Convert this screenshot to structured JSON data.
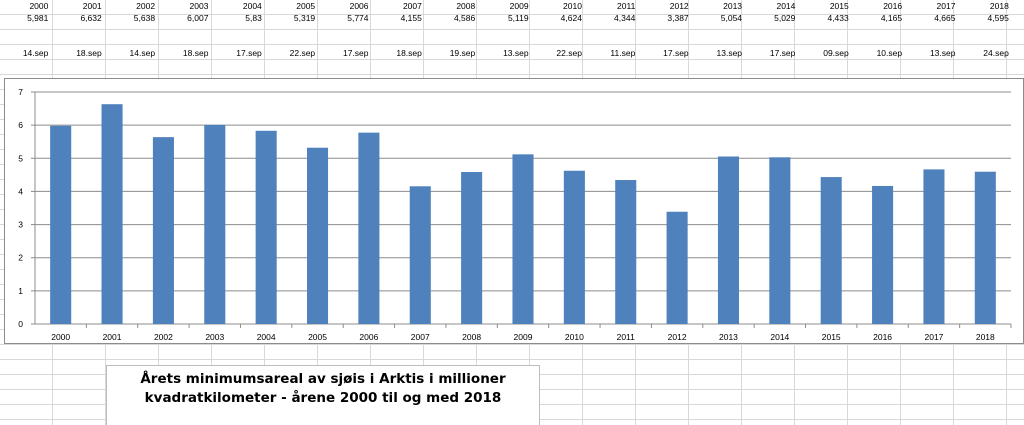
{
  "table": {
    "years": [
      "2000",
      "2001",
      "2002",
      "2003",
      "2004",
      "2005",
      "2006",
      "2007",
      "2008",
      "2009",
      "2010",
      "2011",
      "2012",
      "2013",
      "2014",
      "2015",
      "2016",
      "2017",
      "2018"
    ],
    "values": [
      "5,981",
      "6,632",
      "5,638",
      "6,007",
      "5,83",
      "5,319",
      "5,774",
      "4,155",
      "4,586",
      "5,119",
      "4,624",
      "4,344",
      "3,387",
      "5,054",
      "5,029",
      "4,433",
      "4,165",
      "4,665",
      "4,595"
    ],
    "dates": [
      "14.sep",
      "18.sep",
      "14.sep",
      "18.sep",
      "17.sep",
      "22.sep",
      "17.sep",
      "18.sep",
      "19.sep",
      "13.sep",
      "22.sep",
      "11.sep",
      "17.sep",
      "13.sep",
      "17.sep",
      "09.sep",
      "10.sep",
      "13.sep",
      "24.sep"
    ]
  },
  "caption": {
    "line1": "Årets minimumsareal av sjøis i Arktis i millioner",
    "line2": "kvadratkilometer - årene 2000 til og med 2018"
  },
  "chart_data": {
    "type": "bar",
    "categories": [
      "2000",
      "2001",
      "2002",
      "2003",
      "2004",
      "2005",
      "2006",
      "2007",
      "2008",
      "2009",
      "2010",
      "2011",
      "2012",
      "2013",
      "2014",
      "2015",
      "2016",
      "2017",
      "2018"
    ],
    "values": [
      5.981,
      6.632,
      5.638,
      6.007,
      5.83,
      5.319,
      5.774,
      4.155,
      4.586,
      5.119,
      4.624,
      4.344,
      3.387,
      5.054,
      5.029,
      4.433,
      4.165,
      4.665,
      4.595
    ],
    "ylim": [
      0,
      7
    ],
    "yticks": [
      "0",
      "1",
      "2",
      "3",
      "4",
      "5",
      "6",
      "7"
    ],
    "grid": true,
    "bar_color": "#4f81bd",
    "grid_color": "#8c8c8c"
  }
}
